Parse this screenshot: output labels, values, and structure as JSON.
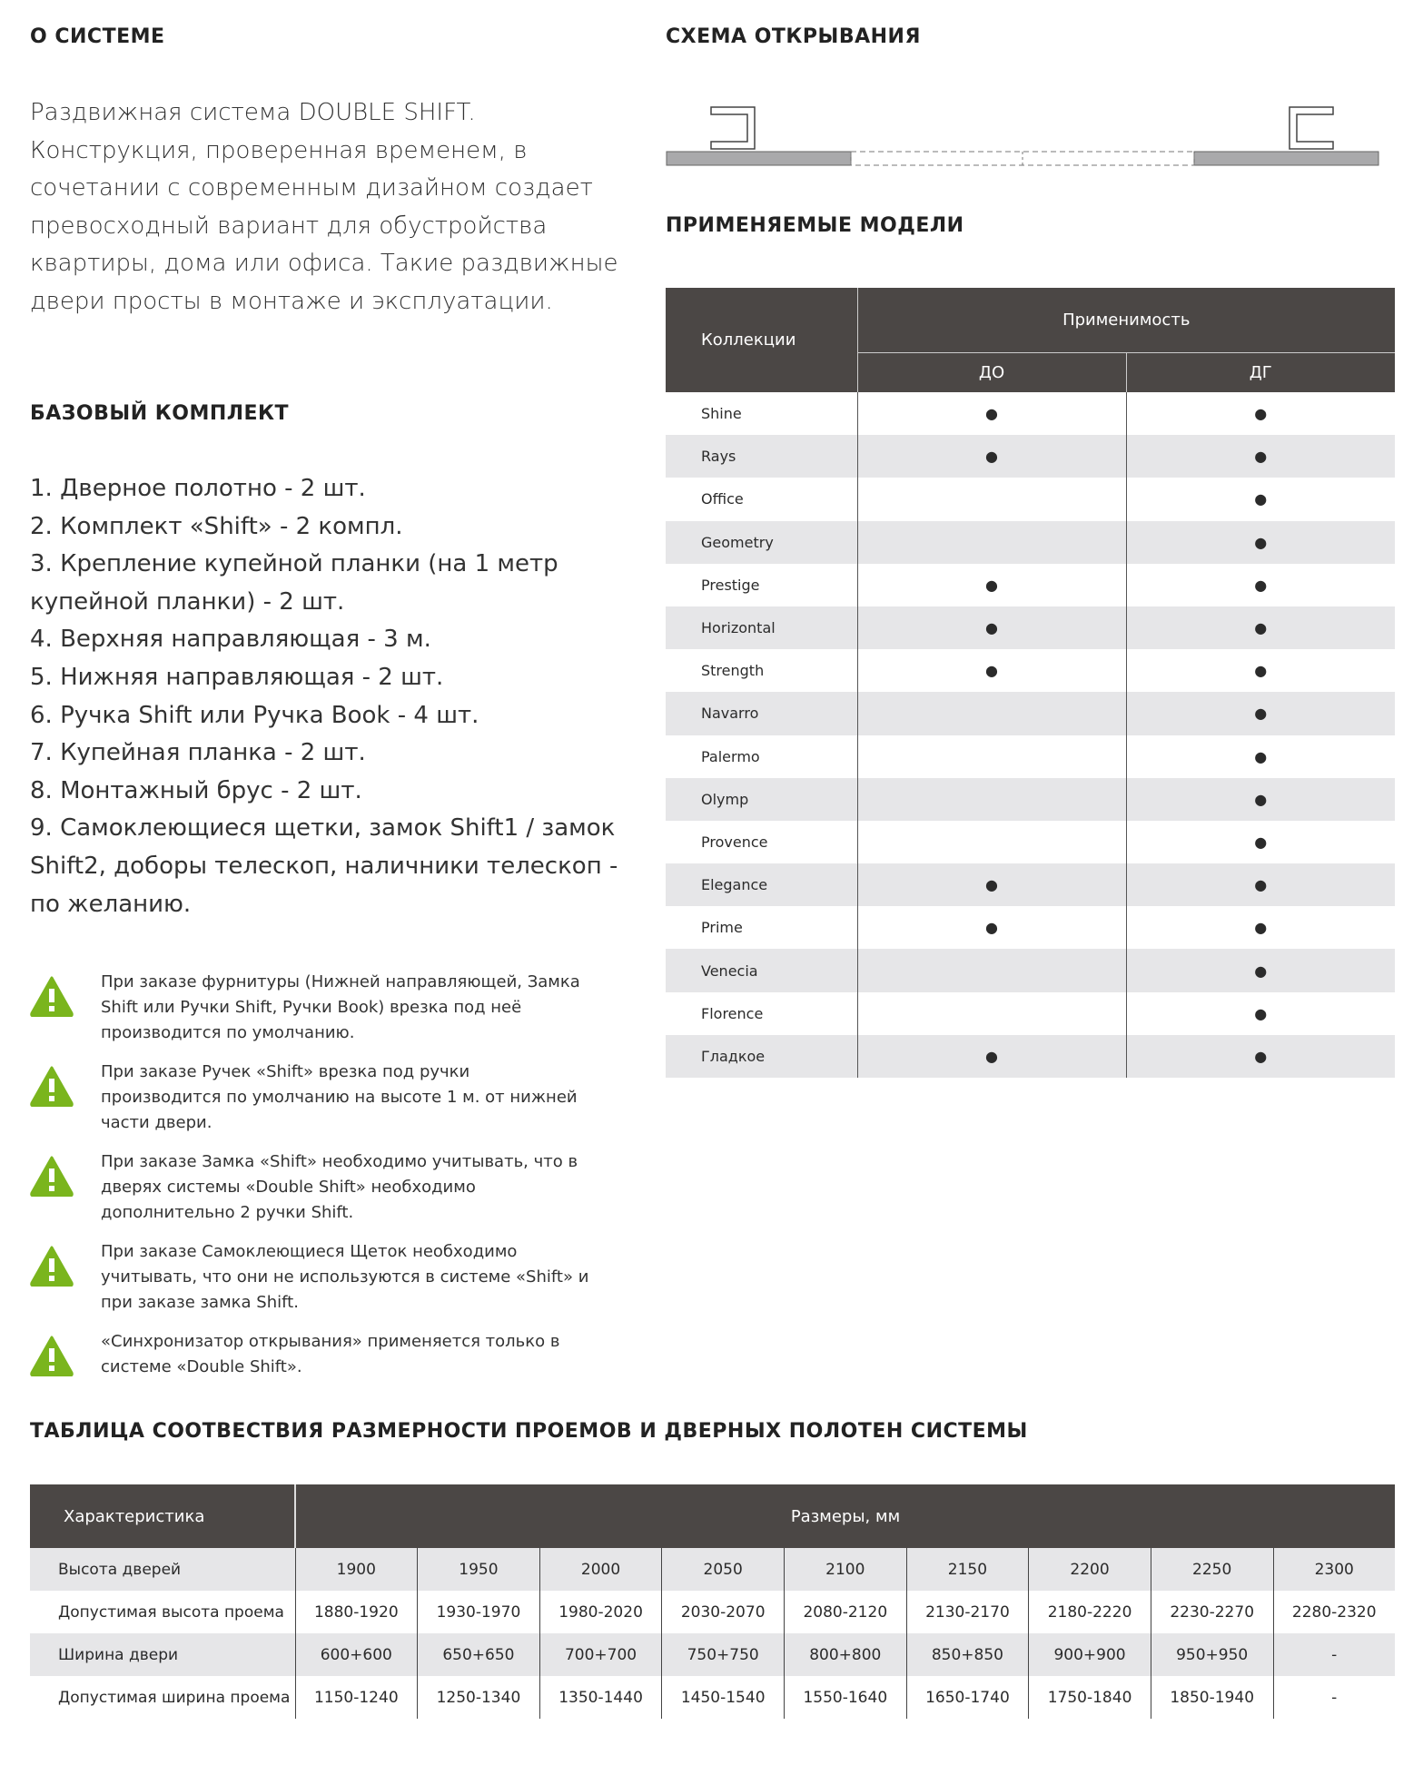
{
  "about": {
    "title": "О СИСТЕМЕ",
    "text": "Раздвижная система DOUBLE SHIFT. Конструкция, проверенная временем, в сочетании с современным дизайном создает превосходный вариант для обустройства квартиры, дома или офиса. Такие раздвижные двери просты в монтаже и эксплуатации."
  },
  "scheme": {
    "title": "СХЕМА ОТКРЫВАНИЯ"
  },
  "kit": {
    "title": "БАЗОВЫЙ КОМПЛЕКТ",
    "items": [
      "1. Дверное полотно - 2 шт.",
      "2. Комплект «Shift» - 2 компл.",
      "3. Крепление купейной планки (на 1 метр купейной планки) - 2 шт.",
      "4. Верхняя направляющая -  3 м.",
      "5. Нижняя направляющая -  2 шт.",
      "6. Ручка Shift или Ручка Book -  4 шт.",
      "7. Купейная планка  - 2 шт.",
      "8. Монтажный брус - 2 шт.",
      "9. Самоклеющиеся щетки, замок Shift1 / замок Shift2, доборы телескоп, наличники телескоп  - по желанию."
    ]
  },
  "notes": {
    "icon": "warning-icon",
    "color": "#7ab51d",
    "items": [
      "При заказе фурнитуры (Нижней направляющей, Замка Shift или Ручки Shift, Ручки Book) врезка под неё производится  по умолчанию.",
      "При заказе Ручек «Shift» врезка под ручки производится по умолчанию на высоте 1 м. от нижней части двери.",
      "При заказе Замка «Shift» необходимо учитывать, что в дверях системы «Double Shift» необходимо дополнительно 2 ручки Shift.",
      "При заказе Самоклеющиеся Щеток необходимо учитывать, что они не используются в системе «Shift» и при заказе замка Shift.",
      "«Синхронизатор открывания» применяется только в системе «Double Shift»."
    ]
  },
  "models": {
    "title": "ПРИМЕНЯЕМЫЕ МОДЕЛИ",
    "col_collections": "Коллекции",
    "col_applicability": "Применимость",
    "col_do": "ДО",
    "col_dg": "ДГ",
    "mark": "●",
    "header_color": "#4b4745",
    "rows": [
      {
        "name": "Shine",
        "do": true,
        "dg": true
      },
      {
        "name": "Rays",
        "do": true,
        "dg": true
      },
      {
        "name": "Office",
        "do": false,
        "dg": true
      },
      {
        "name": "Geometry",
        "do": false,
        "dg": true
      },
      {
        "name": "Prestige",
        "do": true,
        "dg": true
      },
      {
        "name": "Horizontal",
        "do": true,
        "dg": true
      },
      {
        "name": "Strength",
        "do": true,
        "dg": true
      },
      {
        "name": "Navarro",
        "do": false,
        "dg": true
      },
      {
        "name": "Palermo",
        "do": false,
        "dg": true
      },
      {
        "name": "Olymp",
        "do": false,
        "dg": true
      },
      {
        "name": "Provence",
        "do": false,
        "dg": true
      },
      {
        "name": "Elegance",
        "do": true,
        "dg": true
      },
      {
        "name": "Prime",
        "do": true,
        "dg": true
      },
      {
        "name": "Venecia",
        "do": false,
        "dg": true
      },
      {
        "name": "Florence",
        "do": false,
        "dg": true
      },
      {
        "name": "Гладкое",
        "do": true,
        "dg": true
      }
    ]
  },
  "sizes": {
    "title": "ТАБЛИЦА СООТВЕСТВИЯ РАЗМЕРНОСТИ ПРОЕМОВ И ДВЕРНЫХ ПОЛОТЕН СИСТЕМЫ",
    "col_char": "Характеристика",
    "col_sizes": "Размеры, мм",
    "rows": [
      {
        "label": "Высота дверей",
        "values": [
          "1900",
          "1950",
          "2000",
          "2050",
          "2100",
          "2150",
          "2200",
          "2250",
          "2300"
        ]
      },
      {
        "label": "Допустимая высота проема",
        "values": [
          "1880-1920",
          "1930-1970",
          "1980-2020",
          "2030-2070",
          "2080-2120",
          "2130-2170",
          "2180-2220",
          "2230-2270",
          "2280-2320"
        ]
      },
      {
        "label": "Ширина двери",
        "values": [
          "600+600",
          "650+650",
          "700+700",
          "750+750",
          "800+800",
          "850+850",
          "900+900",
          "950+950",
          "-"
        ]
      },
      {
        "label": "Допустимая ширина проема",
        "values": [
          "1150-1240",
          "1250-1340",
          "1350-1440",
          "1450-1540",
          "1550-1640",
          "1650-1740",
          "1750-1840",
          "1850-1940",
          "-"
        ]
      }
    ]
  }
}
